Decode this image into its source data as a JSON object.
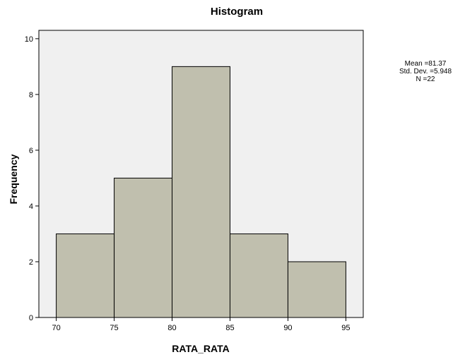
{
  "chart_data": {
    "type": "bar",
    "title": "Histogram",
    "xlabel": "RATA_RATA",
    "ylabel": "Frequency",
    "bins": [
      {
        "from": 70,
        "to": 75,
        "value": 3
      },
      {
        "from": 75,
        "to": 80,
        "value": 5
      },
      {
        "from": 80,
        "to": 85,
        "value": 9
      },
      {
        "from": 85,
        "to": 90,
        "value": 3
      },
      {
        "from": 90,
        "to": 95,
        "value": 2
      }
    ],
    "x_ticks": [
      "70",
      "75",
      "80",
      "85",
      "90",
      "95"
    ],
    "y_ticks": [
      "0",
      "2",
      "4",
      "6",
      "8",
      "10"
    ],
    "xlim": [
      68.5,
      96.5
    ],
    "ylim": [
      0,
      10.3
    ],
    "bar_color": "#c0bfae",
    "plot_background": "#f0f0f0",
    "grid": false,
    "stats": {
      "mean": "Mean =81.37",
      "std_dev": "Std. Dev. =5.948",
      "n": "N =22"
    }
  }
}
